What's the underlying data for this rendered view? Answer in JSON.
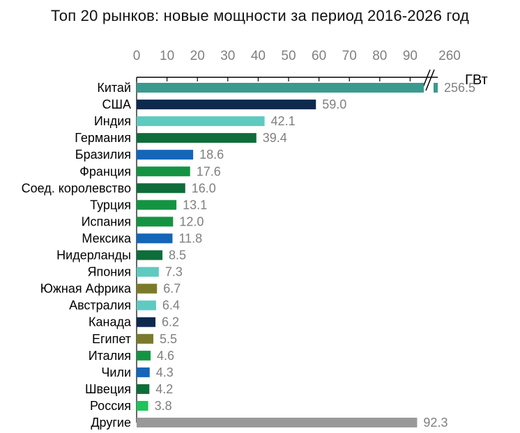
{
  "chart_data": {
    "type": "bar",
    "orientation": "horizontal",
    "title": "Топ 20 рынков: новые мощности за период 2016-2026 год",
    "unit": "ГВт",
    "axis_break": {
      "from": 92.3,
      "to": 260
    },
    "xticks": [
      "0",
      "10",
      "20",
      "30",
      "40",
      "50",
      "60",
      "70",
      "80",
      "90",
      "260"
    ],
    "xlim": [
      0,
      260
    ],
    "grid": false,
    "categories": [
      "Китай",
      "США",
      "Индия",
      "Германия",
      "Бразилия",
      "Франция",
      "Соед. королевство",
      "Турция",
      "Испания",
      "Мексика",
      "Нидерланды",
      "Япония",
      "Южная Африка",
      "Австралия",
      "Канада",
      "Египет",
      "Италия",
      "Чили",
      "Швеция",
      "Россия",
      "Другие"
    ],
    "values": [
      256.5,
      59.0,
      42.1,
      39.4,
      18.6,
      17.6,
      16.0,
      13.1,
      12.0,
      11.8,
      8.5,
      7.3,
      6.7,
      6.4,
      6.2,
      5.5,
      4.6,
      4.3,
      4.2,
      3.8,
      92.3
    ],
    "value_labels": [
      "256.5",
      "59.0",
      "42.1",
      "39.4",
      "18.6",
      "17.6",
      "16.0",
      "13.1",
      "12.0",
      "11.8",
      "8.5",
      "7.3",
      "6.7",
      "6.4",
      "6.2",
      "5.5",
      "4.6",
      "4.3",
      "4.2",
      "3.8",
      "92.3"
    ],
    "colors": [
      "#3a9a8f",
      "#0d2a4e",
      "#5fcac0",
      "#0e6d3a",
      "#1565b8",
      "#149443",
      "#0e6d3a",
      "#149443",
      "#149443",
      "#1565b8",
      "#0e6d3a",
      "#5fcac0",
      "#7a7a2a",
      "#5fcac0",
      "#0d2a4e",
      "#7a7a2a",
      "#149443",
      "#1565b8",
      "#0e6d3a",
      "#1ec35a",
      "#999999"
    ]
  }
}
